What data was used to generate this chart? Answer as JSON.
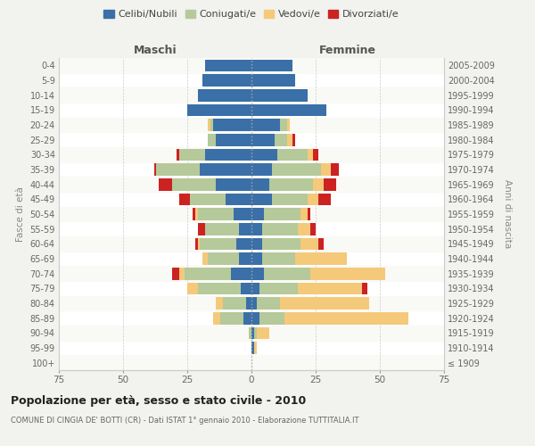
{
  "age_groups": [
    "100+",
    "95-99",
    "90-94",
    "85-89",
    "80-84",
    "75-79",
    "70-74",
    "65-69",
    "60-64",
    "55-59",
    "50-54",
    "45-49",
    "40-44",
    "35-39",
    "30-34",
    "25-29",
    "20-24",
    "15-19",
    "10-14",
    "5-9",
    "0-4"
  ],
  "birth_years": [
    "≤ 1909",
    "1910-1914",
    "1915-1919",
    "1920-1924",
    "1925-1929",
    "1930-1934",
    "1935-1939",
    "1940-1944",
    "1945-1949",
    "1950-1954",
    "1955-1959",
    "1960-1964",
    "1965-1969",
    "1970-1974",
    "1975-1979",
    "1980-1984",
    "1985-1989",
    "1990-1994",
    "1995-1999",
    "2000-2004",
    "2005-2009"
  ],
  "maschi": {
    "celibi": [
      0,
      0,
      0,
      3,
      2,
      4,
      8,
      5,
      6,
      5,
      7,
      10,
      14,
      20,
      18,
      14,
      15,
      25,
      21,
      19,
      18
    ],
    "coniugati": [
      0,
      0,
      1,
      9,
      9,
      17,
      18,
      12,
      14,
      13,
      14,
      14,
      17,
      17,
      10,
      3,
      1,
      0,
      0,
      0,
      0
    ],
    "vedovi": [
      0,
      0,
      0,
      3,
      3,
      4,
      2,
      2,
      1,
      0,
      1,
      0,
      0,
      0,
      0,
      0,
      1,
      0,
      0,
      0,
      0
    ],
    "divorziati": [
      0,
      0,
      0,
      0,
      0,
      0,
      3,
      0,
      1,
      3,
      1,
      4,
      5,
      1,
      1,
      0,
      0,
      0,
      0,
      0,
      0
    ]
  },
  "femmine": {
    "nubili": [
      0,
      1,
      1,
      3,
      2,
      3,
      5,
      4,
      4,
      4,
      5,
      8,
      7,
      8,
      10,
      9,
      11,
      29,
      22,
      17,
      16
    ],
    "coniugate": [
      0,
      0,
      1,
      10,
      9,
      15,
      18,
      13,
      15,
      14,
      14,
      14,
      17,
      19,
      12,
      5,
      3,
      0,
      0,
      0,
      0
    ],
    "vedove": [
      0,
      1,
      5,
      48,
      35,
      25,
      29,
      20,
      7,
      5,
      3,
      4,
      4,
      4,
      2,
      2,
      1,
      0,
      0,
      0,
      0
    ],
    "divorziate": [
      0,
      0,
      0,
      0,
      0,
      2,
      0,
      0,
      2,
      2,
      1,
      5,
      5,
      3,
      2,
      1,
      0,
      0,
      0,
      0,
      0
    ]
  },
  "colors": {
    "celibi_nubili": "#3a6fa8",
    "coniugati_e": "#b5c99a",
    "vedovi_e": "#f5c97a",
    "divorziati_e": "#cc2222"
  },
  "xlim": 75,
  "title": "Popolazione per età, sesso e stato civile - 2010",
  "subtitle": "COMUNE DI CINGIA DE' BOTTI (CR) - Dati ISTAT 1° gennaio 2010 - Elaborazione TUTTITALIA.IT",
  "xlabel_left": "Maschi",
  "xlabel_right": "Femmine",
  "ylabel_left": "Fasce di età",
  "ylabel_right": "Anni di nascita",
  "legend_labels": [
    "Celibi/Nubili",
    "Coniugati/e",
    "Vedovi/e",
    "Divorziati/e"
  ],
  "bg_color": "#f2f2ee",
  "plot_bg_color": "#ffffff"
}
